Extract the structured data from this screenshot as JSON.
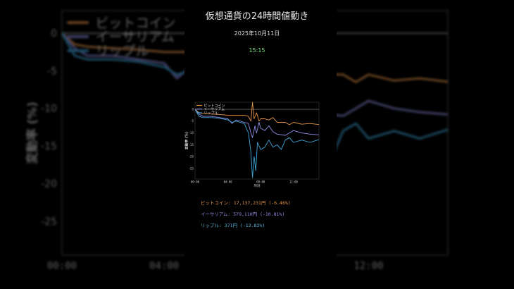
{
  "header": {
    "title": "仮想通貨の24時間値動き",
    "date": "2025年10月11日",
    "time": "15:15"
  },
  "prices": [
    {
      "name": "ビットコイン",
      "text": "ビットコイン: 17,137,231円 (-6.46%)",
      "color": "#e8954a"
    },
    {
      "name": "イーサリアム",
      "text": "イーサリアム: 579,110円 (-10.81%)",
      "color": "#8f8fe8"
    },
    {
      "name": "リップル",
      "text": "リップル: 371円 (-12.82%)",
      "color": "#5fb8e0"
    }
  ],
  "chart_data": {
    "type": "line",
    "xlabel": "時刻",
    "ylabel": "変動率 (%)",
    "xlim": [
      0,
      15.1
    ],
    "ylim": [
      -29.5,
      3
    ],
    "xticks": [
      0,
      4,
      8,
      12
    ],
    "xtick_labels": [
      "00:00",
      "04:00",
      "08:00",
      "12:00"
    ],
    "yticks": [
      0,
      -5,
      -10,
      -15,
      -20,
      -25
    ],
    "ytick_labels": [
      "0",
      "-5",
      "-10",
      "-15",
      "-20",
      "-25"
    ],
    "reference_line": 0,
    "legend_position": "top-left",
    "grid": false,
    "series": [
      {
        "name": "ビットコイン",
        "color": "#e8954a",
        "x": [
          0,
          0.5,
          1,
          2,
          3,
          4,
          5,
          6,
          6.5,
          6.8,
          7,
          7.2,
          7.5,
          7.8,
          8,
          8.5,
          9,
          9.5,
          10,
          11,
          11.5,
          12,
          13,
          14,
          15.1
        ],
        "y": [
          0,
          -1.5,
          -1.8,
          -2,
          -2.2,
          -2.5,
          -2.5,
          -2.5,
          -3,
          -5,
          3,
          -4,
          -1.5,
          -5,
          -4,
          -4,
          -4.5,
          -3.5,
          -5.5,
          -5.5,
          -6.5,
          -5.5,
          -6.3,
          -6,
          -6.46
        ]
      },
      {
        "name": "イーサリアム",
        "color": "#8f8fe8",
        "x": [
          0,
          0.5,
          1,
          2,
          3,
          4,
          4.5,
          5,
          6,
          6.5,
          6.8,
          7,
          7.3,
          7.5,
          7.8,
          8,
          8.5,
          9,
          9.5,
          10,
          11,
          11.5,
          12,
          13,
          14,
          15.1
        ],
        "y": [
          0,
          -2,
          -3,
          -3,
          -3.5,
          -4,
          -6,
          -4.5,
          -5.5,
          -6,
          -10,
          -12,
          -7,
          -10,
          -5.5,
          -8,
          -9,
          -7,
          -9.5,
          -10.5,
          -11,
          -10,
          -9,
          -10,
          -10.5,
          -10.81
        ]
      },
      {
        "name": "リップル",
        "color": "#3fa7dc",
        "x": [
          0,
          0.5,
          1,
          2,
          3,
          4,
          4.5,
          5,
          6,
          6.5,
          6.8,
          7,
          7.2,
          7.4,
          7.6,
          8,
          8.5,
          9,
          9.5,
          10,
          10.5,
          11,
          11.5,
          12,
          13,
          14,
          15.1
        ],
        "y": [
          0,
          -3,
          -3.5,
          -3.5,
          -3.8,
          -4.5,
          -5.5,
          -5,
          -6,
          -10,
          -18,
          -29,
          -20,
          -26,
          -14,
          -17,
          -16,
          -13,
          -16,
          -15,
          -17,
          -13,
          -12,
          -14,
          -13,
          -14,
          -12.82
        ]
      }
    ]
  }
}
